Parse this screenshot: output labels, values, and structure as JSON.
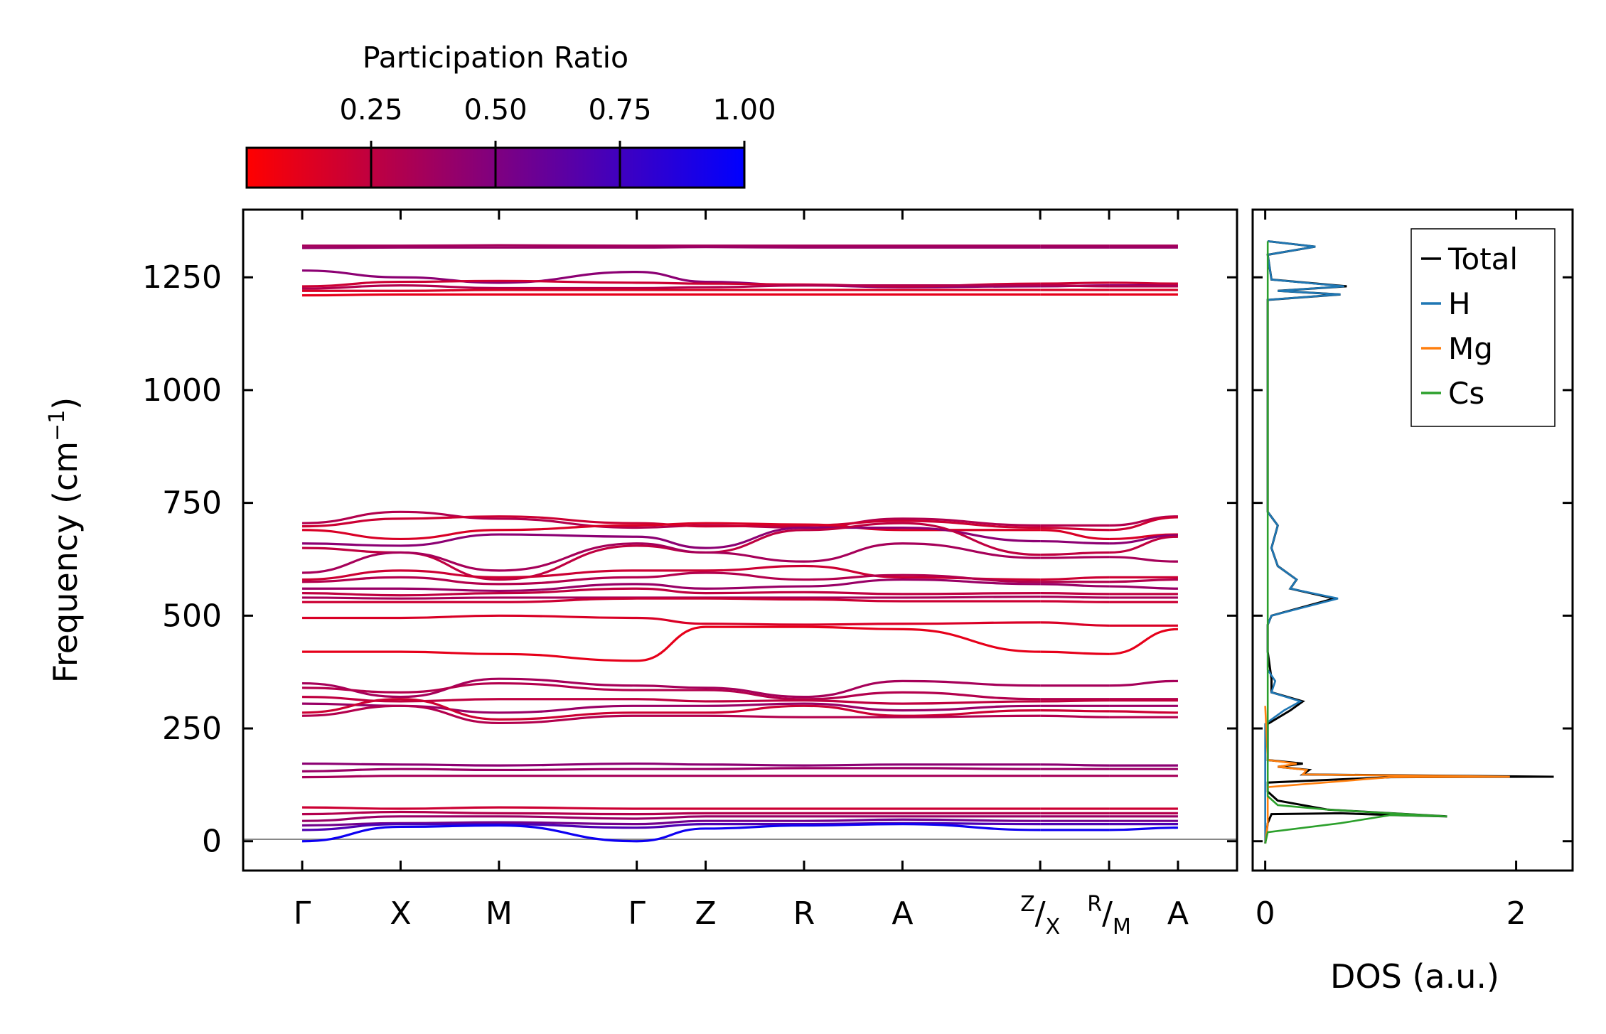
{
  "colorbar": {
    "title": "Participation Ratio",
    "ticks": [
      "0.25",
      "0.50",
      "0.75",
      "1.00"
    ],
    "range": [
      0.0,
      1.0
    ],
    "colors": {
      "low": "#ff0000",
      "high": "#0000ff"
    }
  },
  "chart_data": [
    {
      "type": "line",
      "name": "phonon-band-structure",
      "ylabel": "Frequency (cm",
      "ylabel_sup": "−1",
      "ylabel_close": ")",
      "ylim": [
        -65,
        1400
      ],
      "yticks": [
        "0",
        "250",
        "500",
        "750",
        "1000",
        "1250"
      ],
      "k_points": [
        {
          "label": "Γ",
          "k": 0.0
        },
        {
          "label": "X",
          "k": 1.0
        },
        {
          "label": "M",
          "k": 2.0
        },
        {
          "label": "Γ",
          "k": 3.4
        },
        {
          "label": "Z",
          "k": 4.1
        },
        {
          "label": "R",
          "k": 5.1
        },
        {
          "label": "A",
          "k": 6.1
        },
        {
          "label": "Z|X",
          "k": 7.5
        },
        {
          "label": "R|M",
          "k": 8.2
        },
        {
          "label": "A",
          "k": 8.9
        }
      ],
      "k_labels_split": {
        "Z|X": {
          "top": "Z",
          "bottom": "X"
        },
        "R|M": {
          "top": "R",
          "bottom": "M"
        }
      },
      "segment_breaks": [
        7.5,
        8.2
      ],
      "k_max": 8.9,
      "bands": [
        {
          "pr": 0.35,
          "f": [
            1320,
            1320,
            1321,
            1320,
            1320,
            1320,
            1320,
            1320,
            1320,
            1320
          ]
        },
        {
          "pr": 0.4,
          "f": [
            1315,
            1316,
            1316,
            1316,
            1317,
            1316,
            1316,
            1316,
            1316,
            1316
          ]
        },
        {
          "pr": 0.45,
          "f": [
            1265,
            1250,
            1238,
            1262,
            1240,
            1232,
            1228,
            1230,
            1232,
            1232
          ]
        },
        {
          "pr": 0.2,
          "f": [
            1230,
            1240,
            1242,
            1238,
            1236,
            1234,
            1230,
            1236,
            1238,
            1236
          ]
        },
        {
          "pr": 0.3,
          "f": [
            1225,
            1232,
            1226,
            1226,
            1228,
            1232,
            1232,
            1232,
            1230,
            1230
          ]
        },
        {
          "pr": 0.15,
          "f": [
            1220,
            1220,
            1222,
            1222,
            1222,
            1222,
            1222,
            1222,
            1222,
            1222
          ]
        },
        {
          "pr": 0.1,
          "f": [
            1210,
            1212,
            1212,
            1212,
            1212,
            1212,
            1212,
            1212,
            1212,
            1212
          ]
        },
        {
          "pr": 0.3,
          "f": [
            705,
            730,
            715,
            695,
            700,
            695,
            715,
            700,
            700,
            720
          ]
        },
        {
          "pr": 0.2,
          "f": [
            698,
            715,
            720,
            705,
            698,
            700,
            710,
            695,
            690,
            718
          ]
        },
        {
          "pr": 0.15,
          "f": [
            690,
            670,
            690,
            700,
            705,
            702,
            690,
            690,
            670,
            680
          ]
        },
        {
          "pr": 0.45,
          "f": [
            660,
            655,
            680,
            675,
            650,
            695,
            695,
            665,
            660,
            678
          ]
        },
        {
          "pr": 0.25,
          "f": [
            650,
            640,
            580,
            655,
            640,
            690,
            705,
            635,
            640,
            675
          ]
        },
        {
          "pr": 0.35,
          "f": [
            595,
            640,
            600,
            660,
            640,
            620,
            660,
            628,
            630,
            620
          ]
        },
        {
          "pr": 0.2,
          "f": [
            580,
            600,
            585,
            600,
            600,
            610,
            585,
            580,
            585,
            585
          ]
        },
        {
          "pr": 0.3,
          "f": [
            575,
            585,
            570,
            585,
            595,
            580,
            590,
            575,
            575,
            580
          ]
        },
        {
          "pr": 0.4,
          "f": [
            560,
            560,
            555,
            570,
            560,
            565,
            580,
            570,
            565,
            560
          ]
        },
        {
          "pr": 0.25,
          "f": [
            550,
            545,
            550,
            560,
            550,
            552,
            548,
            550,
            548,
            548
          ]
        },
        {
          "pr": 0.35,
          "f": [
            540,
            538,
            540,
            540,
            540,
            540,
            540,
            542,
            540,
            540
          ]
        },
        {
          "pr": 0.2,
          "f": [
            530,
            530,
            530,
            538,
            538,
            536,
            532,
            532,
            530,
            530
          ]
        },
        {
          "pr": 0.15,
          "f": [
            495,
            495,
            500,
            495,
            482,
            480,
            482,
            485,
            478,
            478
          ]
        },
        {
          "pr": 0.1,
          "f": [
            420,
            420,
            415,
            400,
            475,
            475,
            470,
            420,
            415,
            470
          ]
        },
        {
          "pr": 0.35,
          "f": [
            350,
            320,
            360,
            345,
            340,
            320,
            355,
            345,
            345,
            355
          ]
        },
        {
          "pr": 0.3,
          "f": [
            340,
            330,
            350,
            335,
            335,
            315,
            330,
            315,
            315,
            315
          ]
        },
        {
          "pr": 0.25,
          "f": [
            320,
            310,
            315,
            315,
            310,
            312,
            305,
            310,
            312,
            312
          ]
        },
        {
          "pr": 0.4,
          "f": [
            305,
            300,
            285,
            300,
            300,
            305,
            290,
            300,
            300,
            300
          ]
        },
        {
          "pr": 0.2,
          "f": [
            285,
            315,
            270,
            285,
            285,
            300,
            278,
            290,
            288,
            285
          ]
        },
        {
          "pr": 0.3,
          "f": [
            278,
            300,
            262,
            278,
            278,
            275,
            275,
            278,
            275,
            275
          ]
        },
        {
          "pr": 0.45,
          "f": [
            172,
            170,
            168,
            172,
            170,
            168,
            170,
            170,
            168,
            168
          ]
        },
        {
          "pr": 0.4,
          "f": [
            155,
            160,
            158,
            160,
            160,
            162,
            162,
            160,
            160,
            160
          ]
        },
        {
          "pr": 0.35,
          "f": [
            142,
            145,
            145,
            145,
            145,
            145,
            145,
            145,
            145,
            145
          ]
        },
        {
          "pr": 0.2,
          "f": [
            75,
            72,
            75,
            72,
            72,
            72,
            72,
            72,
            72,
            72
          ]
        },
        {
          "pr": 0.3,
          "f": [
            60,
            65,
            62,
            60,
            62,
            62,
            62,
            62,
            62,
            62
          ]
        },
        {
          "pr": 0.4,
          "f": [
            45,
            55,
            55,
            50,
            55,
            55,
            55,
            55,
            55,
            55
          ]
        },
        {
          "pr": 0.55,
          "f": [
            35,
            40,
            42,
            38,
            45,
            45,
            48,
            45,
            45,
            45
          ]
        },
        {
          "pr": 0.7,
          "f": [
            25,
            38,
            38,
            30,
            38,
            38,
            40,
            38,
            38,
            38
          ]
        },
        {
          "pr": 0.95,
          "f": [
            0,
            32,
            35,
            0,
            28,
            35,
            38,
            25,
            25,
            30
          ]
        }
      ]
    },
    {
      "type": "line",
      "name": "density-of-states",
      "xlabel": "DOS (a.u.)",
      "xlim": [
        -0.1,
        2.45
      ],
      "ylim": [
        -65,
        1400
      ],
      "xticks": [
        "0",
        "2"
      ],
      "legend_position": "top-right",
      "series": [
        {
          "name": "Total",
          "color": "#000000",
          "points": [
            [
              0,
              -5
            ],
            [
              0.02,
              40
            ],
            [
              0.05,
              60
            ],
            [
              0.6,
              62
            ],
            [
              1.0,
              58
            ],
            [
              1.45,
              55
            ],
            [
              0.5,
              70
            ],
            [
              0.1,
              90
            ],
            [
              0.02,
              110
            ],
            [
              0.02,
              130
            ],
            [
              1.0,
              142
            ],
            [
              2.3,
              143
            ],
            [
              0.3,
              148
            ],
            [
              0.35,
              158
            ],
            [
              0.1,
              165
            ],
            [
              0.3,
              172
            ],
            [
              0.02,
              180
            ],
            [
              0.02,
              260
            ],
            [
              0.2,
              290
            ],
            [
              0.3,
              310
            ],
            [
              0.05,
              330
            ],
            [
              0.05,
              360
            ],
            [
              0.02,
              420
            ],
            [
              0.02,
              480
            ],
            [
              0.05,
              500
            ],
            [
              0.55,
              538
            ],
            [
              0.2,
              560
            ],
            [
              0.25,
              580
            ],
            [
              0.1,
              610
            ],
            [
              0.05,
              650
            ],
            [
              0.1,
              700
            ],
            [
              0.02,
              730
            ],
            [
              0.02,
              1200
            ],
            [
              0.6,
              1212
            ],
            [
              0.1,
              1220
            ],
            [
              0.65,
              1230
            ],
            [
              0.05,
              1245
            ],
            [
              0.02,
              1300
            ],
            [
              0.4,
              1318
            ],
            [
              0.02,
              1330
            ]
          ]
        },
        {
          "name": "H",
          "color": "#1f77b4",
          "points": [
            [
              0,
              -5
            ],
            [
              0,
              260
            ],
            [
              0.15,
              290
            ],
            [
              0.28,
              310
            ],
            [
              0.05,
              330
            ],
            [
              0.08,
              355
            ],
            [
              0.02,
              380
            ],
            [
              0.02,
              420
            ],
            [
              0.02,
              480
            ],
            [
              0.05,
              500
            ],
            [
              0.58,
              538
            ],
            [
              0.2,
              560
            ],
            [
              0.25,
              580
            ],
            [
              0.1,
              610
            ],
            [
              0.05,
              650
            ],
            [
              0.1,
              700
            ],
            [
              0.02,
              730
            ],
            [
              0.02,
              1200
            ],
            [
              0.6,
              1212
            ],
            [
              0.1,
              1220
            ],
            [
              0.63,
              1230
            ],
            [
              0.05,
              1245
            ],
            [
              0.02,
              1300
            ],
            [
              0.4,
              1318
            ],
            [
              0.02,
              1330
            ]
          ]
        },
        {
          "name": "Mg",
          "color": "#ff7f0e",
          "points": [
            [
              0,
              -5
            ],
            [
              0.02,
              40
            ],
            [
              0.02,
              120
            ],
            [
              1.0,
              142
            ],
            [
              1.95,
              143
            ],
            [
              0.3,
              148
            ],
            [
              0.33,
              158
            ],
            [
              0.1,
              165
            ],
            [
              0.25,
              172
            ],
            [
              0.02,
              180
            ],
            [
              0.0,
              300
            ]
          ]
        },
        {
          "name": "Cs",
          "color": "#2ca02c",
          "points": [
            [
              0,
              -5
            ],
            [
              0.02,
              20
            ],
            [
              0.6,
              40
            ],
            [
              1.0,
              58
            ],
            [
              1.45,
              55
            ],
            [
              0.5,
              70
            ],
            [
              0.1,
              80
            ],
            [
              0.02,
              100
            ],
            [
              0.02,
              1330
            ]
          ]
        }
      ]
    }
  ]
}
